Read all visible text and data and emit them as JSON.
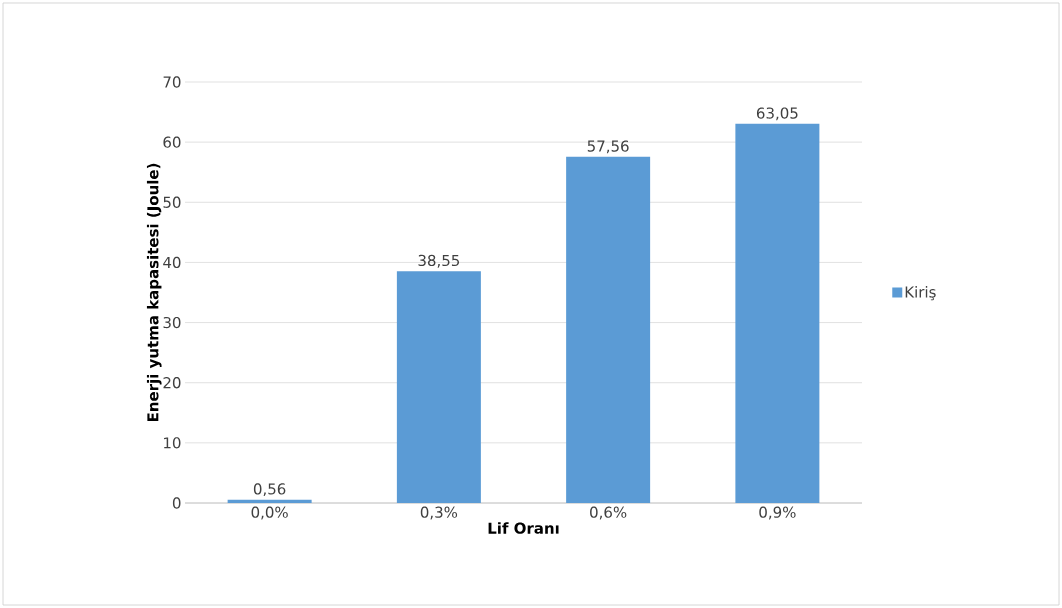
{
  "chart_data": {
    "type": "bar",
    "xlabel": "Lif Oranı",
    "ylabel": "Enerji yutma kapasitesi (Joule)",
    "categories": [
      "0,0%",
      "0,3%",
      "0,6%",
      "0,9%"
    ],
    "series": [
      {
        "name": "Kiriş",
        "color": "#5b9bd5",
        "values": [
          0.56,
          38.55,
          57.56,
          63.05
        ],
        "value_labels": [
          "0,56",
          "38,55",
          "57,56",
          "63,05"
        ]
      }
    ],
    "ylim": [
      0,
      70
    ],
    "yticks": [
      0,
      10,
      20,
      30,
      40,
      50,
      60,
      70
    ],
    "grid": "y",
    "legend": "right"
  }
}
